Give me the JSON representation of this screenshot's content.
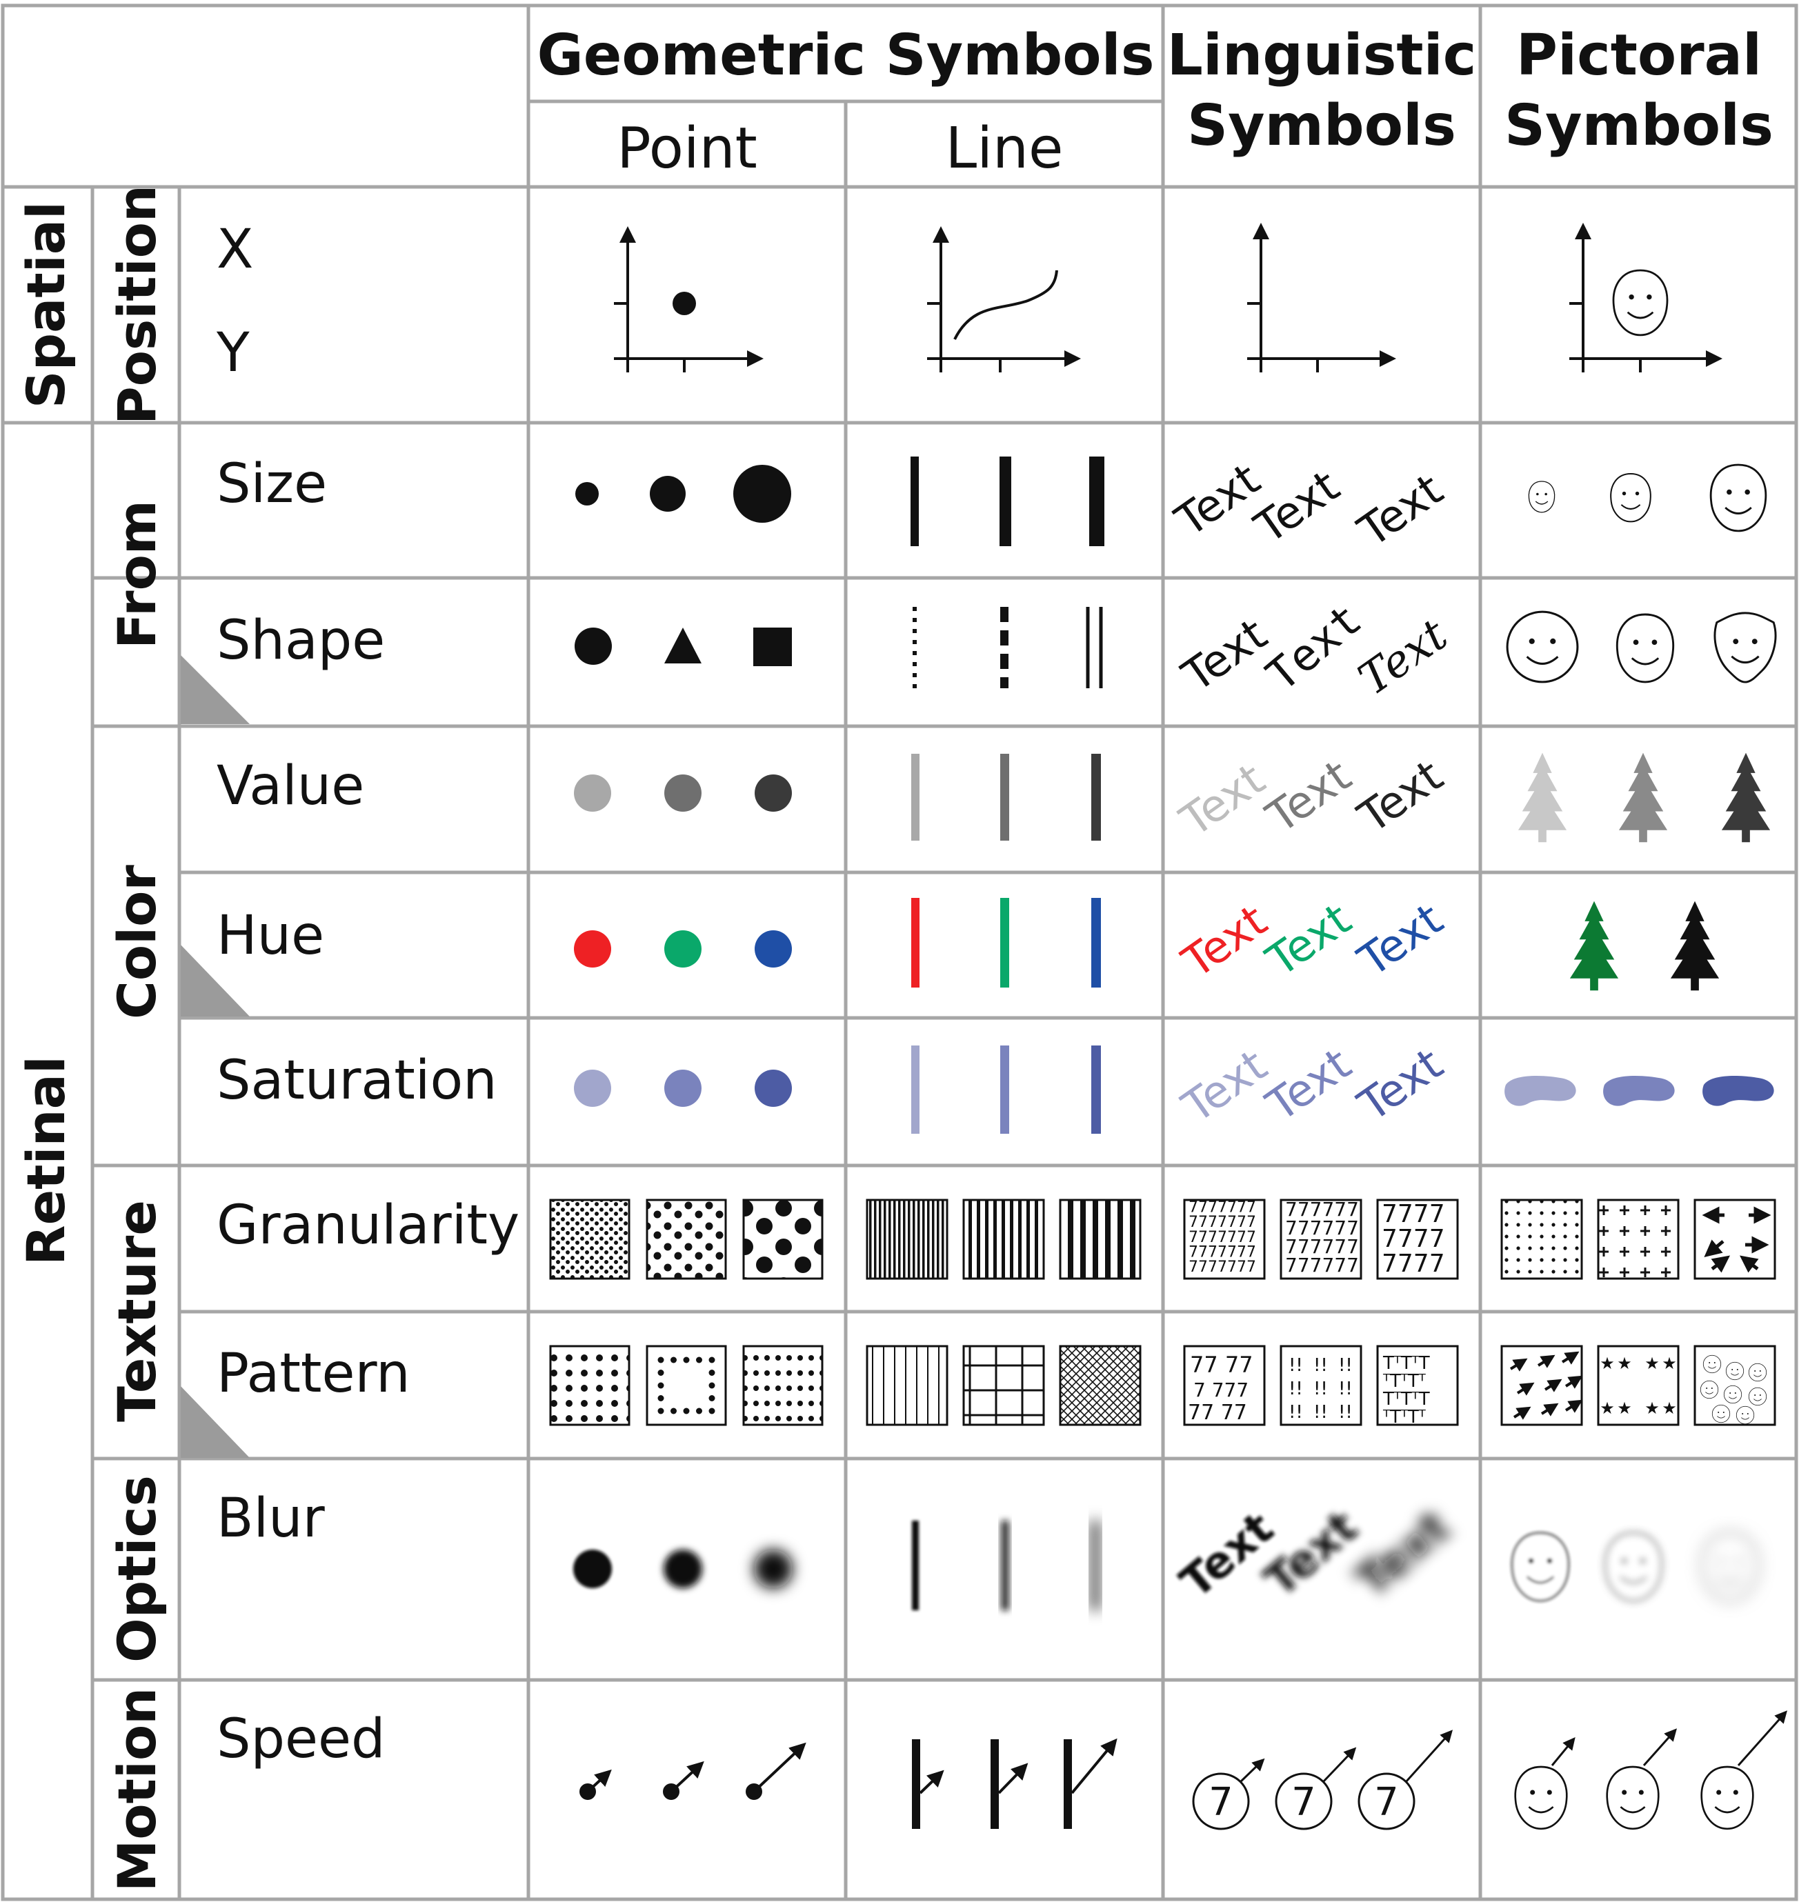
{
  "title": "",
  "headers": {
    "geometric": "Geometric Symbols",
    "point": "Point",
    "line": "Line",
    "linguistic_line1": "Linguistic",
    "linguistic_line2": "Symbols",
    "pictorial_line1": "Pictoral",
    "pictorial_line2": "Symbols"
  },
  "groups": {
    "spatial": "Spatial",
    "retinal": "Retinal"
  },
  "categories": {
    "position": "Position",
    "form": "From",
    "color": "Color",
    "texture": "Texture",
    "optics": "Optics",
    "motion": "Motion"
  },
  "variables": {
    "x": "X",
    "y": "Y",
    "size": "Size",
    "shape": "Shape",
    "value": "Value",
    "hue": "Hue",
    "saturation": "Saturation",
    "granularity": "Granularity",
    "pattern": "Pattern",
    "blur": "Blur",
    "speed": "Speed"
  },
  "sample_text": "Text",
  "sample_digit": "7",
  "colors": {
    "grid": "#a6a6a6",
    "ink": "#111111",
    "value_levels": [
      "#a8a8a8",
      "#6f6f6f",
      "#3a3a3a"
    ],
    "hue_levels": [
      "#ee2124",
      "#0aa86a",
      "#1f4fa6"
    ],
    "tree_hues": [
      "#0c7a33",
      "#111111"
    ],
    "saturation_levels": [
      "#a1a6cc",
      "#7a83bd",
      "#4d5ca4"
    ]
  },
  "icons": [
    "axes-icon",
    "dot-icon",
    "curve-icon",
    "face-icon",
    "tree-icon",
    "blob-icon",
    "arrow-icon",
    "texture-swatch-icon"
  ]
}
